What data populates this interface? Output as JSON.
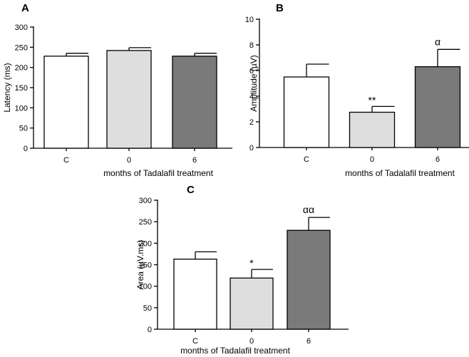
{
  "figure": {
    "bar_colors": [
      "#ffffff",
      "#dedede",
      "#7a7a7a"
    ]
  },
  "chart_data": [
    {
      "panel": "A",
      "type": "bar",
      "categories": [
        "C",
        "0",
        "6"
      ],
      "values": [
        228,
        242,
        228
      ],
      "errors": [
        7,
        7,
        7
      ],
      "ylim": [
        0,
        300
      ],
      "yticks": [
        0,
        50,
        100,
        150,
        200,
        250,
        300
      ],
      "ylabel": "Latency (ms)",
      "xlabel": "months of Tadalafil treatment",
      "annotations": [
        "",
        "",
        ""
      ]
    },
    {
      "panel": "B",
      "type": "bar",
      "categories": [
        "C",
        "0",
        "6"
      ],
      "values": [
        5.5,
        2.75,
        6.3
      ],
      "errors": [
        1.0,
        0.45,
        1.35
      ],
      "ylim": [
        0,
        10
      ],
      "yticks": [
        0,
        2,
        4,
        6,
        8,
        10
      ],
      "ylabel": "Amplitude (µV)",
      "xlabel": "months of Tadalafil treatment",
      "annotations": [
        "",
        "**",
        "α"
      ]
    },
    {
      "panel": "C",
      "type": "bar",
      "categories": [
        "C",
        "0",
        "6"
      ],
      "values": [
        163,
        119,
        230
      ],
      "errors": [
        17,
        20,
        30
      ],
      "ylim": [
        0,
        300
      ],
      "yticks": [
        0,
        50,
        100,
        150,
        200,
        250,
        300
      ],
      "ylabel": "Area (µV.ms)",
      "xlabel": "months of Tadalafil treatment",
      "annotations": [
        "",
        "*",
        "αα"
      ]
    }
  ]
}
